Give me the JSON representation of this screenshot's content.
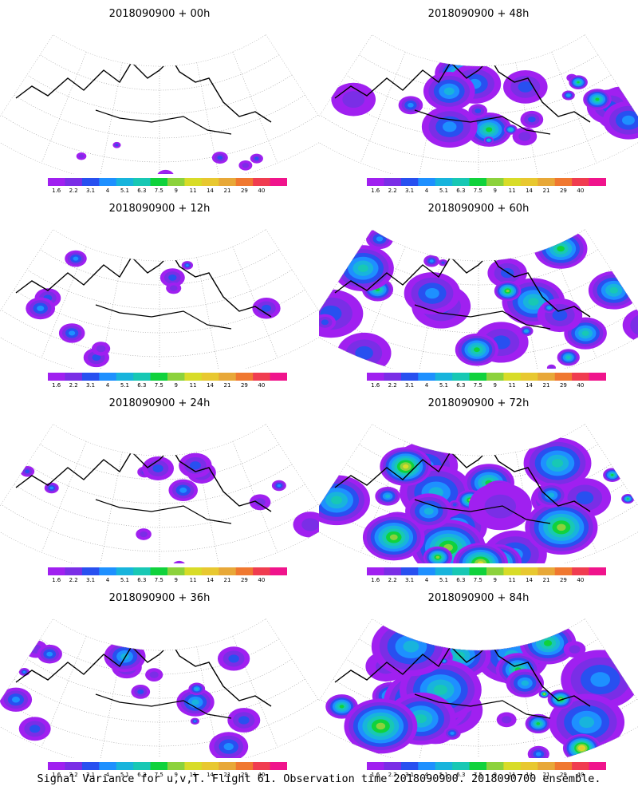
{
  "colorbar": {
    "labels": [
      "1.6",
      "2.2",
      "3.1",
      "4",
      "5.1",
      "6.3",
      "7.5",
      "9",
      "11",
      "14",
      "21",
      "29",
      "40"
    ],
    "colors": [
      "#a020f0",
      "#7a2ee6",
      "#2850f0",
      "#1e90ff",
      "#18b4dc",
      "#18c8b4",
      "#10d23c",
      "#8cd23c",
      "#d8dc28",
      "#e8c830",
      "#e8a838",
      "#f07830",
      "#f03c50",
      "#f0148c"
    ]
  },
  "panels": [
    {
      "title": "2018090900 + 00h",
      "intensity": 0
    },
    {
      "title": "2018090900 + 48h",
      "intensity": 4
    },
    {
      "title": "2018090900 + 12h",
      "intensity": 1
    },
    {
      "title": "2018090900 + 60h",
      "intensity": 5
    },
    {
      "title": "2018090900 + 24h",
      "intensity": 1.5
    },
    {
      "title": "2018090900 + 72h",
      "intensity": 6
    },
    {
      "title": "2018090900 + 36h",
      "intensity": 2.5
    },
    {
      "title": "2018090900 + 84h",
      "intensity": 7
    }
  ],
  "footer": "Signal Variance for u,v,T. Flight 61. Observation time 2018090900. 2018090700 ensemble."
}
